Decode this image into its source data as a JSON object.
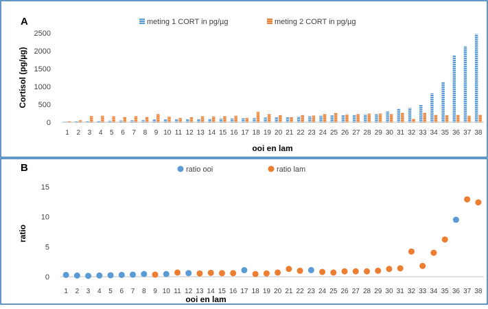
{
  "colors": {
    "frame": "#2e75b6",
    "series_blue": "#5b9bd5",
    "series_orange": "#ed7d31",
    "axis": "#bfbfbf",
    "text": "#404040"
  },
  "chart_data": [
    {
      "panel_label": "A",
      "type": "bar",
      "xlabel": "ooi en lam",
      "ylabel": "Cortisol (pg/µg)",
      "ylim": [
        0,
        2500
      ],
      "yticks": [
        0,
        500,
        1000,
        1500,
        2000,
        2500
      ],
      "grid": false,
      "legend": "top-center",
      "categories": [
        "1",
        "2",
        "3",
        "4",
        "5",
        "6",
        "7",
        "8",
        "9",
        "10",
        "11",
        "12",
        "13",
        "14",
        "15",
        "16",
        "17",
        "18",
        "19",
        "20",
        "21",
        "22",
        "23",
        "24",
        "25",
        "26",
        "27",
        "28",
        "29",
        "30",
        "31",
        "32",
        "33",
        "34",
        "35",
        "36",
        "37",
        "38"
      ],
      "series": [
        {
          "name": "meting 1 CORT in pg/µg",
          "color": "#5b9bd5",
          "pattern": "hatched",
          "values": [
            10,
            20,
            30,
            40,
            45,
            50,
            55,
            60,
            75,
            80,
            85,
            90,
            95,
            100,
            105,
            110,
            115,
            120,
            130,
            140,
            150,
            160,
            170,
            180,
            190,
            200,
            210,
            220,
            230,
            300,
            380,
            400,
            480,
            810,
            1130,
            1870,
            2130,
            2470
          ]
        },
        {
          "name": "meting 2 CORT in pg/µg",
          "color": "#ed7d31",
          "pattern": "hatched",
          "values": [
            25,
            55,
            175,
            180,
            170,
            150,
            170,
            150,
            230,
            160,
            120,
            145,
            170,
            165,
            170,
            180,
            120,
            290,
            230,
            200,
            145,
            200,
            185,
            230,
            260,
            220,
            230,
            240,
            240,
            230,
            270,
            100,
            270,
            210,
            200,
            210,
            180,
            215
          ]
        }
      ]
    },
    {
      "panel_label": "B",
      "type": "scatter",
      "xlabel": "ooi en lam",
      "ylabel": "ratio",
      "ylim": [
        0,
        15
      ],
      "yticks": [
        0,
        5,
        10,
        15
      ],
      "grid": false,
      "legend": "top-center",
      "categories": [
        "1",
        "2",
        "3",
        "4",
        "5",
        "6",
        "7",
        "8",
        "9",
        "10",
        "11",
        "12",
        "13",
        "14",
        "15",
        "16",
        "17",
        "18",
        "19",
        "20",
        "21",
        "22",
        "23",
        "24",
        "25",
        "26",
        "27",
        "28",
        "29",
        "30",
        "31",
        "32",
        "33",
        "34",
        "35",
        "36",
        "37",
        "38"
      ],
      "series": [
        {
          "name": "ratio ooi",
          "color": "#5b9bd5",
          "points": [
            [
              1,
              0.3
            ],
            [
              2,
              0.2
            ],
            [
              3,
              0.15
            ],
            [
              4,
              0.2
            ],
            [
              5,
              0.25
            ],
            [
              6,
              0.3
            ],
            [
              7,
              0.35
            ],
            [
              8,
              0.45
            ],
            [
              10,
              0.45
            ],
            [
              12,
              0.6
            ],
            [
              17,
              1.1
            ],
            [
              23,
              1.1
            ],
            [
              36,
              9.5
            ]
          ]
        },
        {
          "name": "ratio lam",
          "color": "#ed7d31",
          "points": [
            [
              9,
              0.35
            ],
            [
              11,
              0.7
            ],
            [
              13,
              0.55
            ],
            [
              14,
              0.65
            ],
            [
              15,
              0.6
            ],
            [
              16,
              0.6
            ],
            [
              18,
              0.45
            ],
            [
              19,
              0.55
            ],
            [
              20,
              0.7
            ],
            [
              21,
              1.3
            ],
            [
              22,
              1.0
            ],
            [
              24,
              0.8
            ],
            [
              25,
              0.7
            ],
            [
              26,
              0.9
            ],
            [
              27,
              0.9
            ],
            [
              28,
              0.9
            ],
            [
              29,
              1.0
            ],
            [
              30,
              1.3
            ],
            [
              31,
              1.4
            ],
            [
              32,
              4.2
            ],
            [
              33,
              1.8
            ],
            [
              34,
              4.0
            ],
            [
              35,
              6.2
            ],
            [
              37,
              12.9
            ],
            [
              38,
              12.4
            ]
          ]
        }
      ]
    }
  ]
}
